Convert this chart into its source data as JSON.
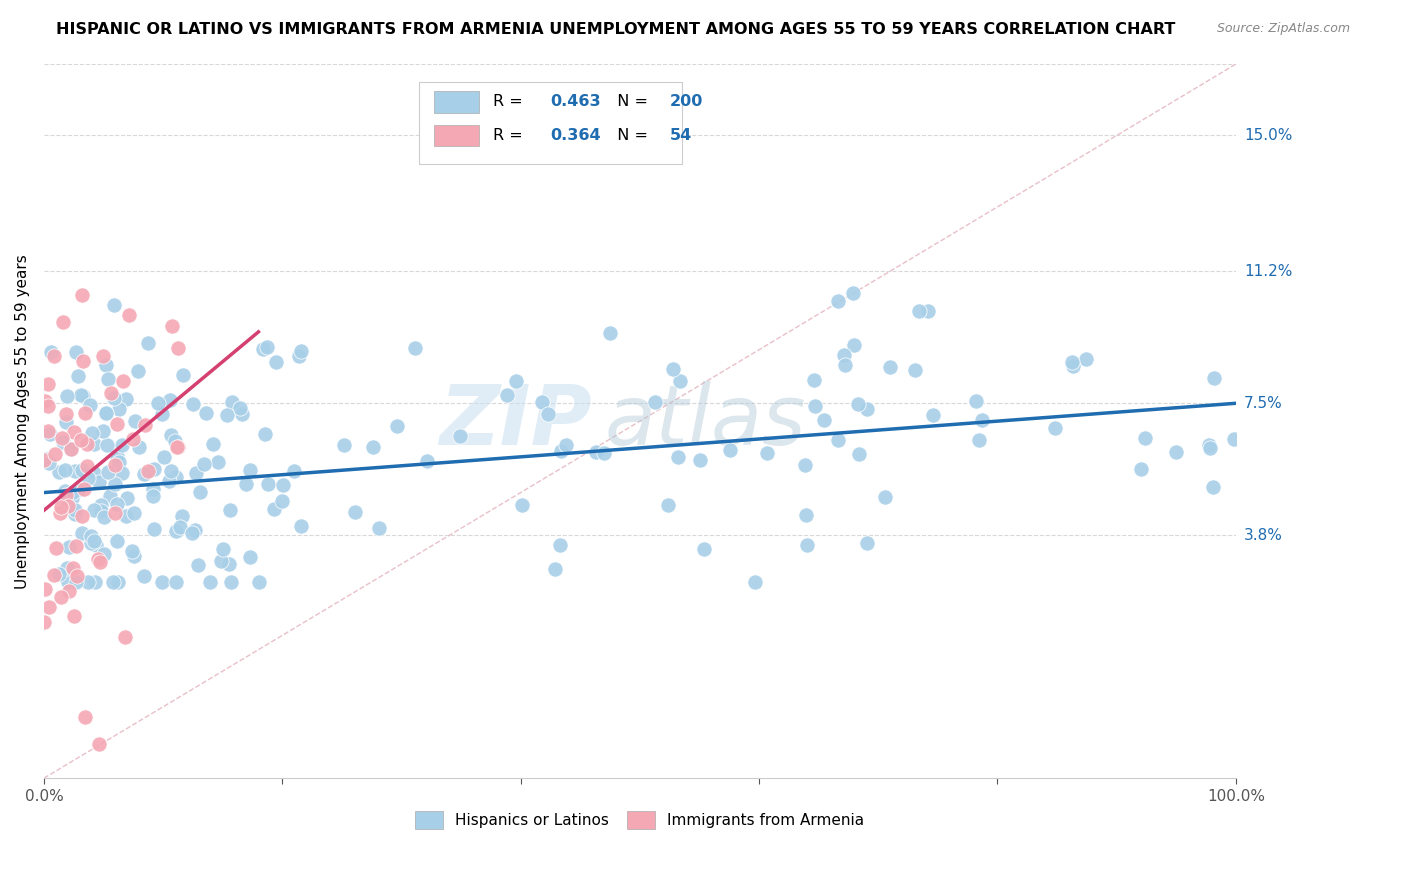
{
  "title": "HISPANIC OR LATINO VS IMMIGRANTS FROM ARMENIA UNEMPLOYMENT AMONG AGES 55 TO 59 YEARS CORRELATION CHART",
  "source": "Source: ZipAtlas.com",
  "ylabel": "Unemployment Among Ages 55 to 59 years",
  "xlim": [
    0,
    100
  ],
  "ylim": [
    -3,
    17
  ],
  "xtick_labels": [
    "0.0%",
    "100.0%"
  ],
  "ytick_labels": [
    "3.8%",
    "7.5%",
    "11.2%",
    "15.0%"
  ],
  "ytick_values": [
    3.8,
    7.5,
    11.2,
    15.0
  ],
  "blue_R": "0.463",
  "blue_N": "200",
  "pink_R": "0.364",
  "pink_N": "54",
  "blue_color": "#a8cfe8",
  "pink_color": "#f4a8b4",
  "blue_line_color": "#1f6cb0",
  "pink_line_color": "#d44070",
  "diagonal_color": "#cccccc",
  "legend_label_blue": "Hispanics or Latinos",
  "legend_label_pink": "Immigrants from Armenia",
  "watermark_zip": "ZIP",
  "watermark_atlas": "atlas",
  "background_color": "#ffffff",
  "grid_color": "#d8d8d8",
  "title_fontsize": 11.5,
  "axis_label_fontsize": 11,
  "tick_label_fontsize": 11,
  "right_label_color": "#1f6cb0",
  "blue_trend_start_y": 5.0,
  "blue_trend_end_y": 7.5,
  "pink_trend_start_x": 0,
  "pink_trend_start_y": 4.5,
  "pink_trend_end_x": 18,
  "pink_trend_end_y": 9.5
}
